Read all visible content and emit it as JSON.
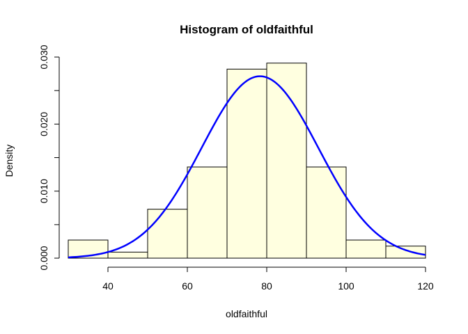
{
  "chart_data": {
    "type": "bar",
    "title": "Histogram of oldfaithful",
    "xlabel": "oldfaithful",
    "ylabel": "Density",
    "bins": [
      {
        "from": 30,
        "to": 40,
        "density": 0.0027
      },
      {
        "from": 40,
        "to": 50,
        "density": 0.0009
      },
      {
        "from": 50,
        "to": 60,
        "density": 0.0073
      },
      {
        "from": 60,
        "to": 70,
        "density": 0.0136
      },
      {
        "from": 70,
        "to": 80,
        "density": 0.0282
      },
      {
        "from": 80,
        "to": 90,
        "density": 0.0291
      },
      {
        "from": 90,
        "to": 100,
        "density": 0.0136
      },
      {
        "from": 100,
        "to": 110,
        "density": 0.0027
      },
      {
        "from": 110,
        "to": 120,
        "density": 0.0018
      }
    ],
    "density_curve": {
      "type": "normal",
      "mean": 78.3,
      "sd": 14.7
    },
    "xlim": [
      30,
      120
    ],
    "ylim": [
      0,
      0.03
    ],
    "x_ticks": [
      "40",
      "60",
      "80",
      "100",
      "120"
    ],
    "y_ticks": [
      "0.000",
      "0.010",
      "0.020",
      "0.030"
    ],
    "grid": false,
    "bar_fill": "#ffffe0",
    "bar_stroke": "#000000",
    "curve_color": "#0000ff"
  }
}
